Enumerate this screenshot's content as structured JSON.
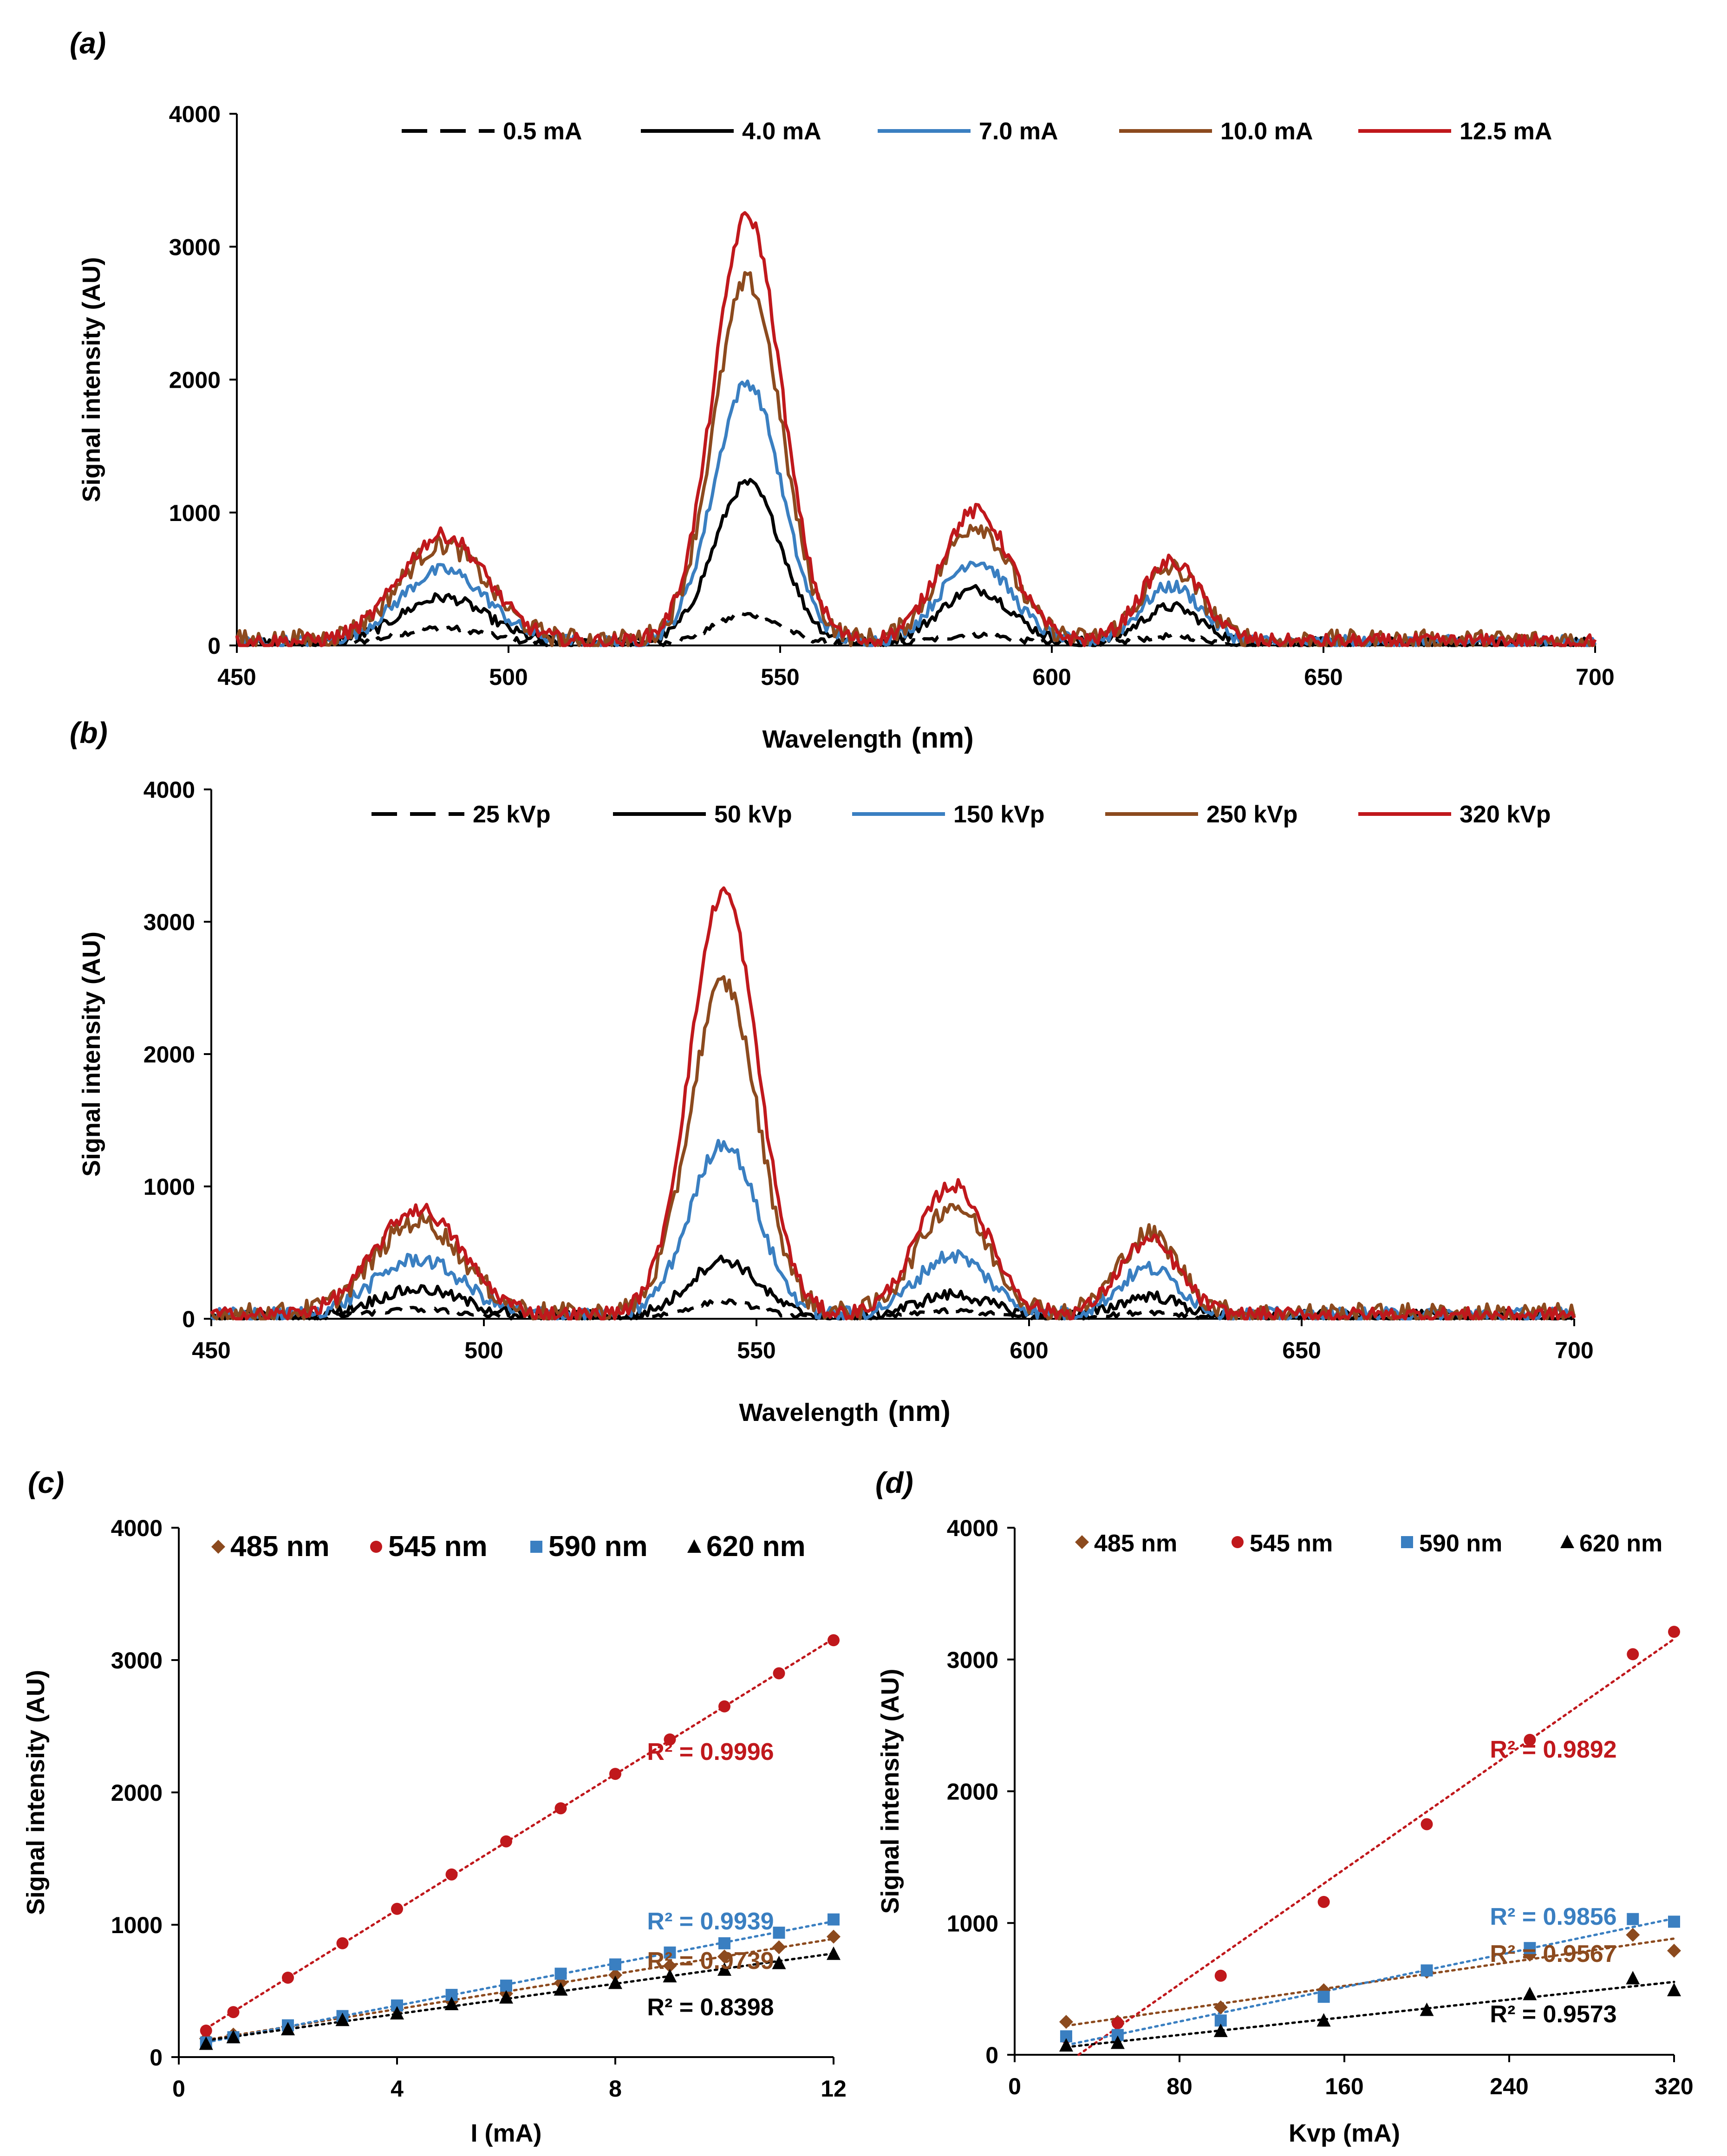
{
  "chart_data": [
    {
      "id": "a",
      "panel_label": "(a)",
      "type": "line",
      "xlabel": "Wavelength",
      "xlabel_unit": "(nm)",
      "ylabel": "Signal intensity (AU)",
      "xlim": [
        450,
        700
      ],
      "ylim": [
        0,
        4000
      ],
      "xticks": [
        "450",
        "500",
        "550",
        "600",
        "650",
        "700"
      ],
      "yticks": [
        "0",
        "1000",
        "2000",
        "3000",
        "4000"
      ],
      "legend_position": "top",
      "peaks_nm": [
        488,
        544,
        586,
        622
      ],
      "series": [
        {
          "name": "0.5 mA",
          "color": "#000000",
          "dashed": true,
          "peaks": [
            120,
            220,
            70,
            60
          ],
          "noise": 30
        },
        {
          "name": "4.0 mA",
          "color": "#000000",
          "dashed": false,
          "peaks": [
            340,
            1200,
            400,
            270
          ],
          "noise": 55
        },
        {
          "name": "7.0 mA",
          "color": "#3a7fc1",
          "dashed": false,
          "peaks": [
            540,
            1950,
            610,
            420
          ],
          "noise": 70
        },
        {
          "name": "10.0 mA",
          "color": "#8c4a1e",
          "dashed": false,
          "peaks": [
            720,
            2700,
            870,
            540
          ],
          "noise": 110
        },
        {
          "name": "12.5 mA",
          "color": "#c0181c",
          "dashed": false,
          "peaks": [
            800,
            3200,
            980,
            600
          ],
          "noise": 80
        }
      ]
    },
    {
      "id": "b",
      "panel_label": "(b)",
      "type": "line",
      "xlabel": "Wavelength",
      "xlabel_unit": "(nm)",
      "ylabel": "Signal intensity (AU)",
      "xlim": [
        450,
        700
      ],
      "ylim": [
        0,
        4000
      ],
      "xticks": [
        "450",
        "500",
        "550",
        "600",
        "650",
        "700"
      ],
      "yticks": [
        "0",
        "1000",
        "2000",
        "3000",
        "4000"
      ],
      "legend_position": "top",
      "peaks_nm": [
        488,
        544,
        586,
        622
      ],
      "series": [
        {
          "name": "25 kVp",
          "color": "#000000",
          "dashed": true,
          "peaks": [
            60,
            120,
            50,
            40
          ],
          "noise": 25
        },
        {
          "name": "50 kVp",
          "color": "#000000",
          "dashed": false,
          "peaks": [
            200,
            420,
            160,
            150
          ],
          "noise": 60
        },
        {
          "name": "150 kVp",
          "color": "#3a7fc1",
          "dashed": false,
          "peaks": [
            420,
            1300,
            450,
            350
          ],
          "noise": 80
        },
        {
          "name": "250 kVp",
          "color": "#8c4a1e",
          "dashed": false,
          "peaks": [
            700,
            2500,
            820,
            600
          ],
          "noise": 110
        },
        {
          "name": "320 kVp",
          "color": "#c0181c",
          "dashed": false,
          "peaks": [
            800,
            3200,
            980,
            560
          ],
          "noise": 80
        }
      ]
    },
    {
      "id": "c",
      "panel_label": "(c)",
      "type": "scatter",
      "xlabel": "I (mA)",
      "ylabel": "Signal intensity (AU)",
      "xlim": [
        0,
        12
      ],
      "ylim": [
        0,
        4000
      ],
      "xticks": [
        "0",
        "4",
        "8",
        "12"
      ],
      "yticks": [
        "0",
        "1000",
        "2000",
        "3000",
        "4000"
      ],
      "legend_position": "top",
      "series": [
        {
          "name": "485 nm",
          "color": "#8c4a1e",
          "marker": "diamond",
          "x": [
            0.5,
            1,
            2,
            3,
            4,
            5,
            6,
            7,
            8,
            9,
            10,
            11,
            12
          ],
          "y": [
            140,
            170,
            230,
            300,
            360,
            420,
            480,
            560,
            620,
            690,
            760,
            830,
            910
          ],
          "r2_label": "R² = 0.9739"
        },
        {
          "name": "545 nm",
          "color": "#c0181c",
          "marker": "circle",
          "x": [
            0.5,
            1,
            2,
            3,
            4,
            5,
            6,
            7,
            8,
            9,
            10,
            11,
            12
          ],
          "y": [
            200,
            340,
            600,
            860,
            1120,
            1380,
            1630,
            1880,
            2140,
            2400,
            2650,
            2900,
            3150
          ],
          "r2_label": "R² = 0.9996"
        },
        {
          "name": "590 nm",
          "color": "#3a7fc1",
          "marker": "square",
          "x": [
            0.5,
            1,
            2,
            3,
            4,
            5,
            6,
            7,
            8,
            9,
            10,
            11,
            12
          ],
          "y": [
            110,
            150,
            240,
            310,
            390,
            470,
            540,
            630,
            700,
            790,
            860,
            940,
            1040
          ],
          "r2_label": "R² = 0.9939"
        },
        {
          "name": "620 nm",
          "color": "#000000",
          "marker": "triangle",
          "x": [
            0.5,
            1,
            2,
            3,
            4,
            5,
            6,
            7,
            8,
            9,
            10,
            11,
            12
          ],
          "y": [
            100,
            150,
            210,
            280,
            330,
            400,
            450,
            510,
            560,
            610,
            660,
            710,
            780
          ],
          "r2_label": "R² = 0.8398"
        }
      ]
    },
    {
      "id": "d",
      "panel_label": "(d)",
      "type": "scatter",
      "xlabel": "Kvp (mA)",
      "ylabel": "Signal intensity (AU)",
      "xlim": [
        0,
        320
      ],
      "ylim": [
        0,
        4000
      ],
      "xticks": [
        "0",
        "80",
        "160",
        "240",
        "320"
      ],
      "yticks": [
        "0",
        "1000",
        "2000",
        "3000",
        "4000"
      ],
      "legend_position": "top",
      "series": [
        {
          "name": "485 nm",
          "color": "#8c4a1e",
          "marker": "diamond",
          "x": [
            25,
            50,
            100,
            150,
            200,
            250,
            300,
            320
          ],
          "y": [
            250,
            250,
            360,
            490,
            630,
            760,
            910,
            790
          ],
          "r2_label": "R² = 0.9567"
        },
        {
          "name": "545 nm",
          "color": "#c0181c",
          "marker": "circle",
          "x": [
            25,
            50,
            100,
            150,
            200,
            250,
            300,
            320
          ],
          "y": [
            130,
            240,
            600,
            1160,
            1750,
            2390,
            3040,
            3210
          ],
          "r2_label": "R² = 0.9892"
        },
        {
          "name": "590 nm",
          "color": "#3a7fc1",
          "marker": "square",
          "x": [
            25,
            50,
            100,
            150,
            200,
            250,
            300,
            320
          ],
          "y": [
            140,
            150,
            260,
            440,
            640,
            810,
            1030,
            1010
          ],
          "r2_label": "R² = 0.9856"
        },
        {
          "name": "620 nm",
          "color": "#000000",
          "marker": "triangle",
          "x": [
            25,
            50,
            100,
            150,
            200,
            250,
            300,
            320
          ],
          "y": [
            70,
            90,
            180,
            260,
            340,
            460,
            580,
            490
          ],
          "r2_label": "R² = 0.9573"
        }
      ]
    }
  ]
}
